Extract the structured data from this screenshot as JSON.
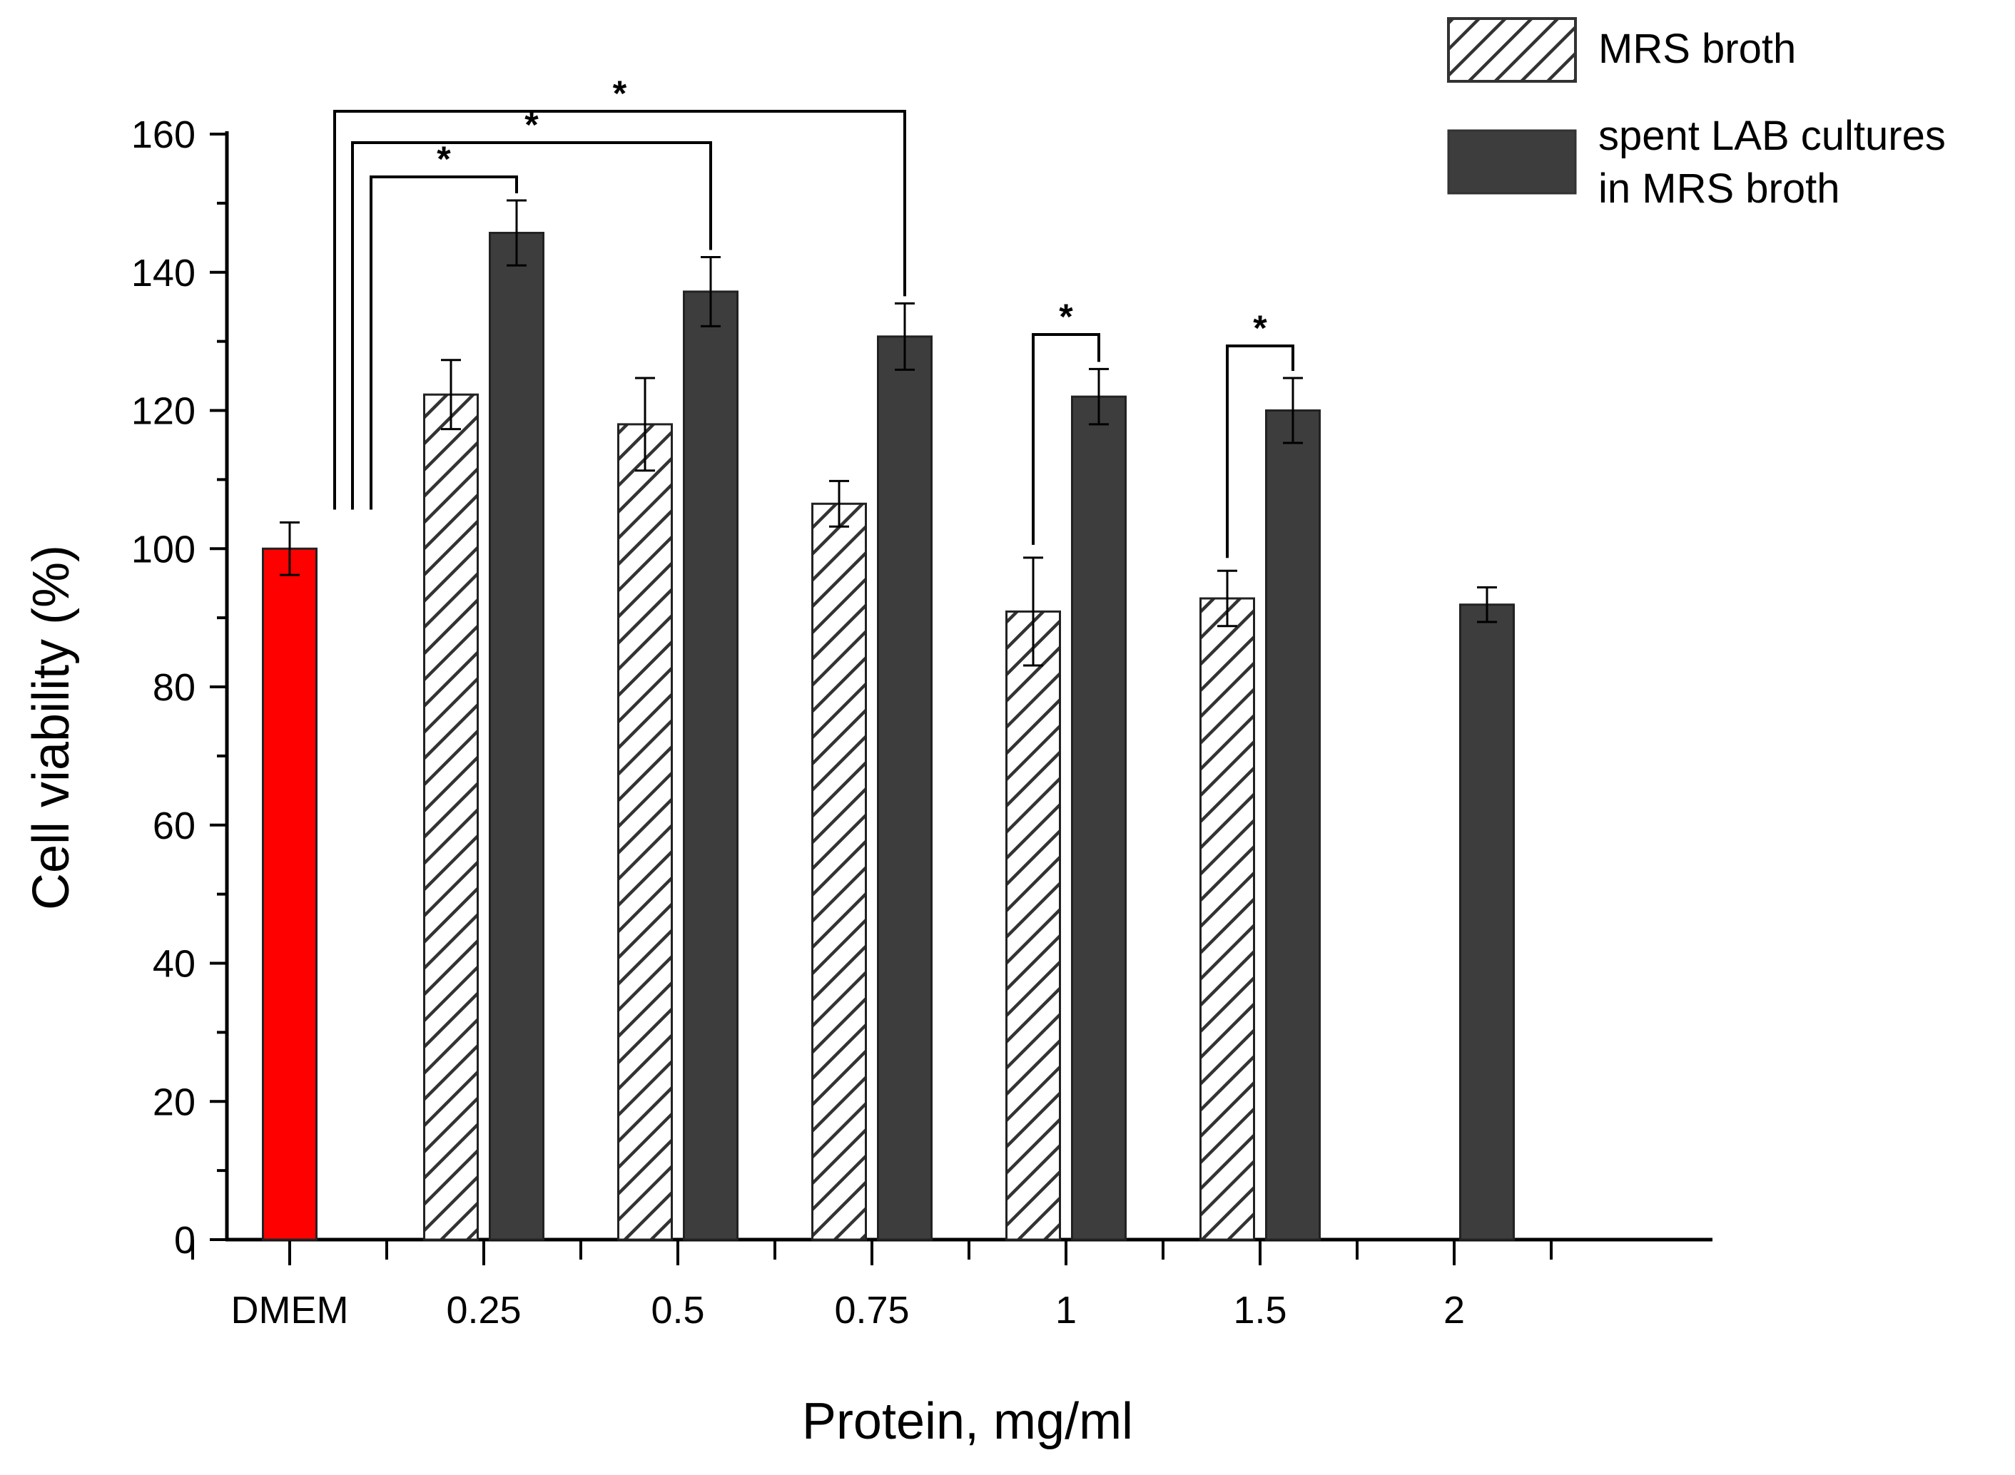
{
  "chart_data": {
    "type": "bar",
    "title": "",
    "xlabel": "Protein, mg/ml",
    "ylabel": "Cell viability (%)",
    "ylim": [
      0,
      160
    ],
    "yticks": [
      "0",
      "20",
      "40",
      "60",
      "80",
      "100",
      "120",
      "140",
      "160"
    ],
    "categories": [
      "DMEM",
      "0.25",
      "0.5",
      "0.75",
      "1",
      "1.5",
      "2"
    ],
    "control": {
      "category": "DMEM",
      "value": 100,
      "error": 3.8,
      "color": "#ff0000"
    },
    "series": [
      {
        "name": "MRS broth",
        "pattern": "hatched",
        "values": [
          null,
          122.3,
          118.0,
          106.5,
          90.9,
          92.8,
          null
        ],
        "errors": [
          null,
          5.0,
          6.7,
          3.3,
          7.8,
          4.0,
          null
        ]
      },
      {
        "name": "spent LAB cultures in MRS broth",
        "legend_lines": [
          "spent LAB cultures",
          "in MRS broth"
        ],
        "color": "#3d3d3d",
        "values": [
          null,
          145.7,
          137.2,
          130.7,
          122.0,
          120.0,
          91.9
        ],
        "errors": [
          null,
          4.7,
          5.0,
          4.8,
          4.0,
          4.7,
          2.5
        ]
      }
    ],
    "legend_position": "top-right",
    "significance": [
      {
        "from": "DMEM",
        "to": "0.25 spent LAB",
        "label": "*"
      },
      {
        "from": "DMEM",
        "to": "0.5 spent LAB",
        "label": "*"
      },
      {
        "from": "DMEM",
        "to": "0.75 spent LAB",
        "label": "*"
      },
      {
        "from": "1 MRS broth",
        "to": "1 spent LAB",
        "label": "*"
      },
      {
        "from": "1.5 MRS broth",
        "to": "1.5 spent LAB",
        "label": "*"
      }
    ]
  }
}
